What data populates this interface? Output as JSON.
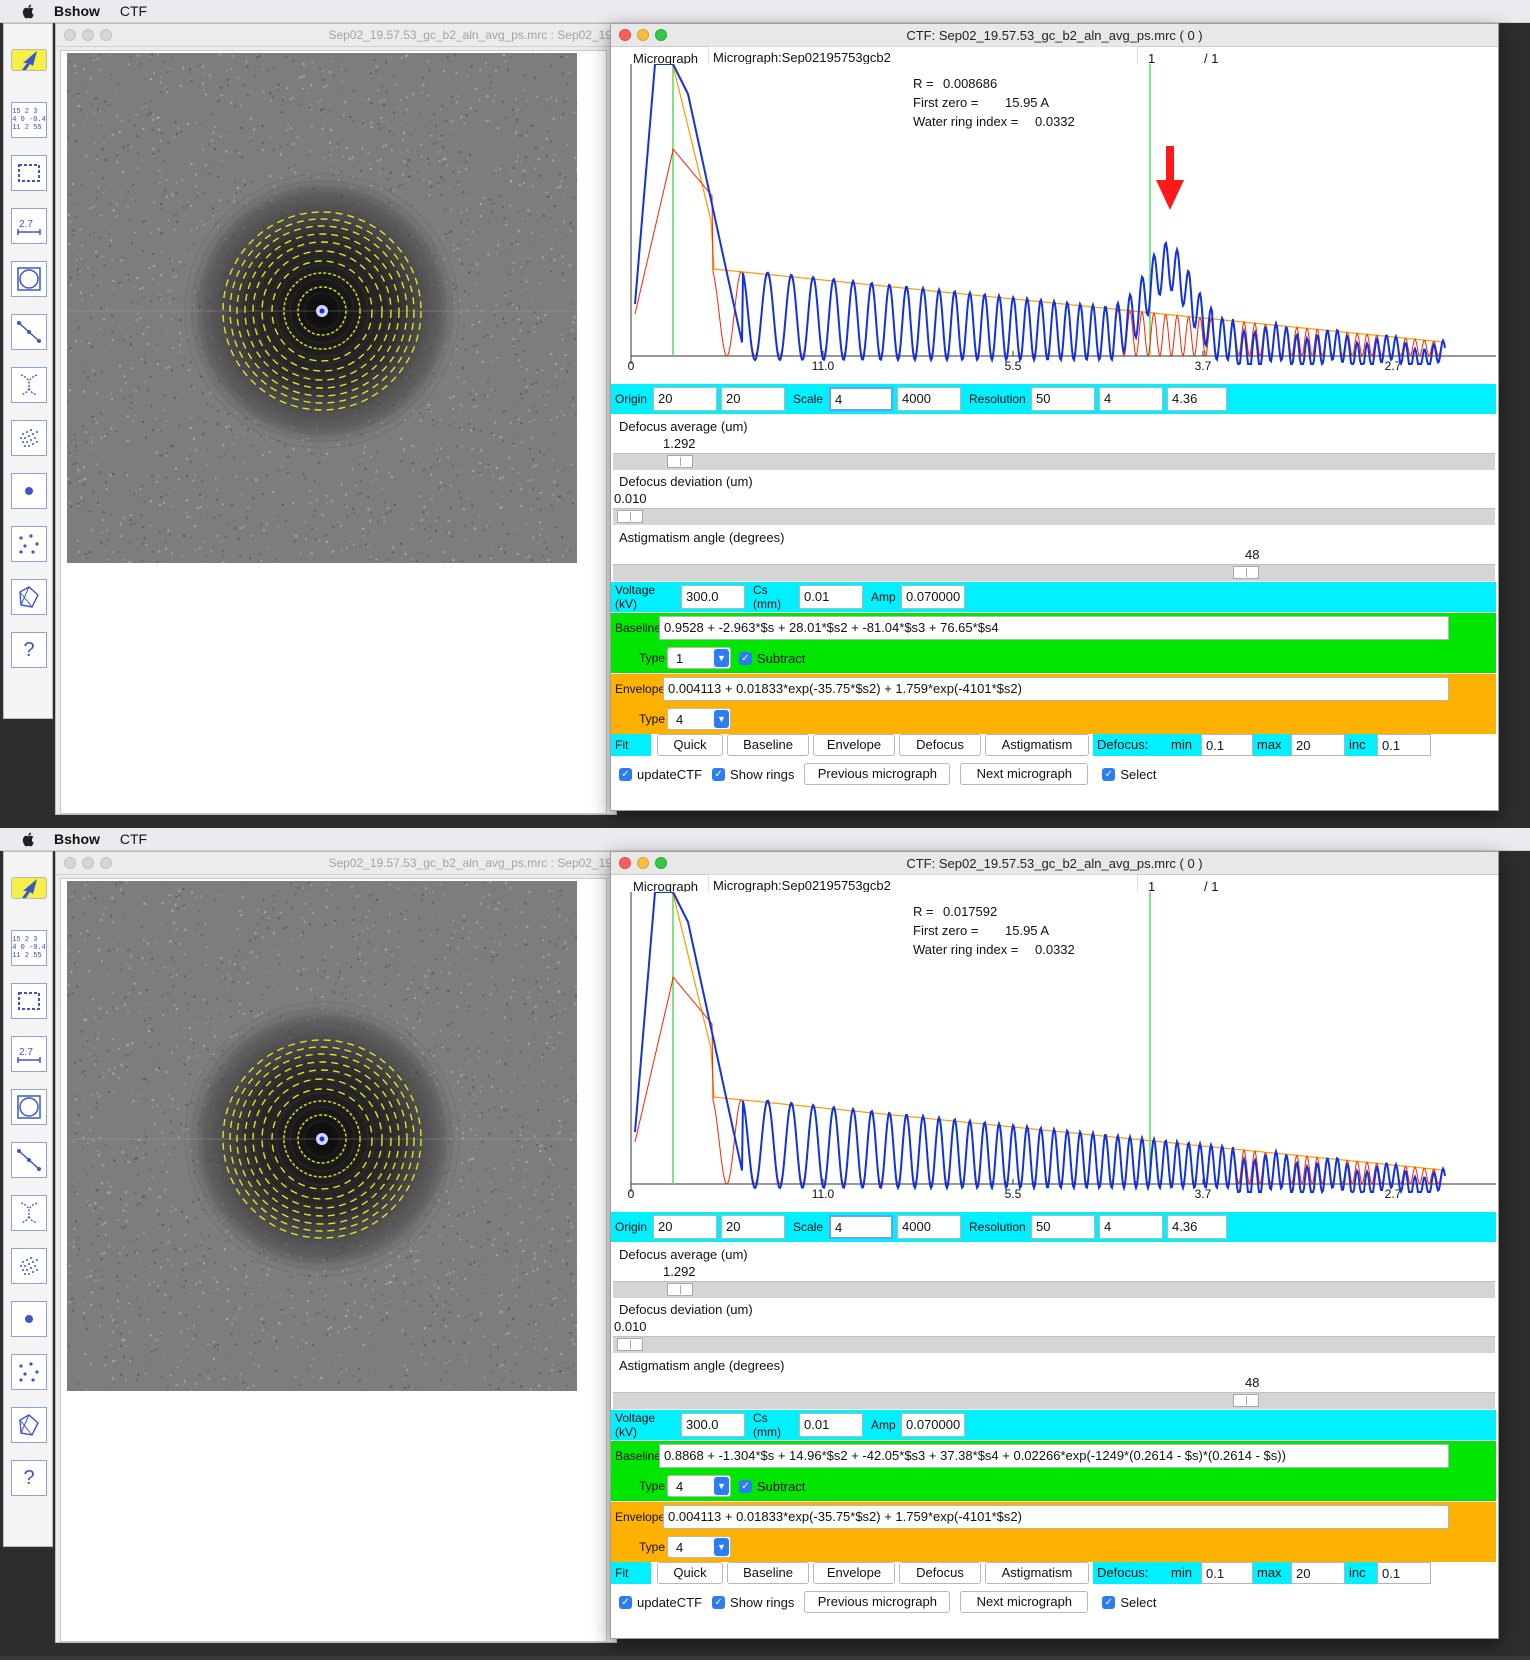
{
  "menubar": {
    "app_name": "Bshow",
    "menu_ctf": "CTF"
  },
  "toolbar": {
    "matrix_text": [
      "15 2 3",
      "4 0 -0.4",
      "11 2 55"
    ],
    "measure_text": "2.7",
    "help_text": "?"
  },
  "image_window": {
    "title": "Sep02_19.57.53_gc_b2_aln_avg_ps.mrc : Sep02_19"
  },
  "panels": [
    {
      "ctf": {
        "title": "CTF: Sep02_19.57.53_gc_b2_aln_avg_ps.mrc ( 0 )",
        "micrograph_label": "Micrograph",
        "micrograph_value": "Micrograph:Sep02195753gcb2",
        "micrograph_index": "1",
        "micrograph_count": "/ 1",
        "r_label": "R =",
        "r_value": "0.008686",
        "first_zero_label": "First zero =",
        "first_zero_value": "15.95 A",
        "water_ring_label": "Water ring index =",
        "water_ring_value": "0.0332",
        "axis_ticks": [
          "0",
          "11.0",
          "5.5",
          "3.7",
          "2.7"
        ],
        "origin_label": "Origin",
        "origin_x": "20",
        "origin_y": "20",
        "scale_label": "Scale",
        "scale_x": "4",
        "scale_y": "4000",
        "resolution_label": "Resolution",
        "res_lo": "50",
        "res_hi": "4",
        "res_current": "4.36",
        "defocus_avg_label": "Defocus average (um)",
        "defocus_avg_value": "1.292",
        "defocus_dev_label": "Defocus deviation (um)",
        "defocus_dev_value": "0.010",
        "astig_label": "Astigmatism angle (degrees)",
        "astig_value": "48",
        "voltage_label": "Voltage (kV)",
        "voltage_value": "300.0",
        "cs_label": "Cs (mm)",
        "cs_value": "0.01",
        "amp_label": "Amp",
        "amp_value": "0.070000",
        "baseline_label": "Baseline",
        "baseline_expr": "0.9528 + -2.963*$s + 28.01*$s2 + -81.04*$s3 + 76.65*$s4",
        "baseline_type_label": "Type",
        "baseline_type": "1",
        "subtract_label": "Subtract",
        "envelope_label": "Envelope",
        "envelope_expr": "0.004113 + 0.01833*exp(-35.75*$s2) + 1.759*exp(-4101*$s2)",
        "envelope_type_label": "Type",
        "envelope_type": "4",
        "fit_label": "Fit",
        "btn_quick": "Quick",
        "btn_baseline": "Baseline",
        "btn_envelope": "Envelope",
        "btn_defocus": "Defocus",
        "btn_astigmatism": "Astigmatism",
        "defocus_label": "Defocus:",
        "min_label": "min",
        "min_value": "0.1",
        "max_label": "max",
        "max_value": "20",
        "inc_label": "inc",
        "inc_value": "0.1",
        "update_ctf_label": "updateCTF",
        "show_rings_label": "Show rings",
        "btn_prev": "Previous micrograph",
        "btn_next": "Next micrograph",
        "select_label": "Select"
      },
      "annotation_arrow": {
        "color": "#ff1a1a"
      }
    },
    {
      "ctf": {
        "title": "CTF: Sep02_19.57.53_gc_b2_aln_avg_ps.mrc ( 0 )",
        "micrograph_label": "Micrograph",
        "micrograph_value": "Micrograph:Sep02195753gcb2",
        "micrograph_index": "1",
        "micrograph_count": "/ 1",
        "r_label": "R =",
        "r_value": "0.017592",
        "first_zero_label": "First zero =",
        "first_zero_value": "15.95 A",
        "water_ring_label": "Water ring index =",
        "water_ring_value": "0.0332",
        "axis_ticks": [
          "0",
          "11.0",
          "5.5",
          "3.7",
          "2.7"
        ],
        "origin_label": "Origin",
        "origin_x": "20",
        "origin_y": "20",
        "scale_label": "Scale",
        "scale_x": "4",
        "scale_y": "4000",
        "resolution_label": "Resolution",
        "res_lo": "50",
        "res_hi": "4",
        "res_current": "4.36",
        "defocus_avg_label": "Defocus average (um)",
        "defocus_avg_value": "1.292",
        "defocus_dev_label": "Defocus deviation (um)",
        "defocus_dev_value": "0.010",
        "astig_label": "Astigmatism angle (degrees)",
        "astig_value": "48",
        "voltage_label": "Voltage (kV)",
        "voltage_value": "300.0",
        "cs_label": "Cs (mm)",
        "cs_value": "0.01",
        "amp_label": "Amp",
        "amp_value": "0.070000",
        "baseline_label": "Baseline",
        "baseline_expr": "0.8868 + -1.304*$s + 14.96*$s2 + -42.05*$s3 + 37.38*$s4 + 0.02266*exp(-1249*(0.2614 - $s)*(0.2614 - $s))",
        "baseline_type_label": "Type",
        "baseline_type": "4",
        "subtract_label": "Subtract",
        "envelope_label": "Envelope",
        "envelope_expr": "0.004113 + 0.01833*exp(-35.75*$s2) + 1.759*exp(-4101*$s2)",
        "envelope_type_label": "Type",
        "envelope_type": "4",
        "fit_label": "Fit",
        "btn_quick": "Quick",
        "btn_baseline": "Baseline",
        "btn_envelope": "Envelope",
        "btn_defocus": "Defocus",
        "btn_astigmatism": "Astigmatism",
        "defocus_label": "Defocus:",
        "min_label": "min",
        "min_value": "0.1",
        "max_label": "max",
        "max_value": "20",
        "inc_label": "inc",
        "inc_value": "0.1",
        "update_ctf_label": "updateCTF",
        "show_rings_label": "Show rings",
        "btn_prev": "Previous micrograph",
        "btn_next": "Next micrograph",
        "select_label": "Select"
      }
    }
  ],
  "colors": {
    "cyan": "#00f0ff",
    "green": "#00e600",
    "orange": "#ffb100",
    "fit_curve": "#ff2200",
    "envelope_curve": "#ff9a00",
    "data_curve": "#1133dd",
    "zero_lines": "#55dd55"
  },
  "chart_data": [
    {
      "type": "line",
      "title": "",
      "xlabel": "",
      "ylabel": "",
      "x_tick_labels": [
        "0",
        "11.0",
        "5.5",
        "3.7",
        "2.7"
      ],
      "series": [],
      "annotations": [
        "R = 0.008686",
        "First zero = 15.95 A",
        "Water ring index = 0.0332"
      ],
      "grid": false
    },
    {
      "type": "line",
      "title": "",
      "xlabel": "",
      "ylabel": "",
      "x_tick_labels": [
        "0",
        "11.0",
        "5.5",
        "3.7",
        "2.7"
      ],
      "series": [],
      "annotations": [
        "R = 0.017592",
        "First zero = 15.95 A",
        "Water ring index = 0.0332"
      ],
      "grid": false
    }
  ]
}
